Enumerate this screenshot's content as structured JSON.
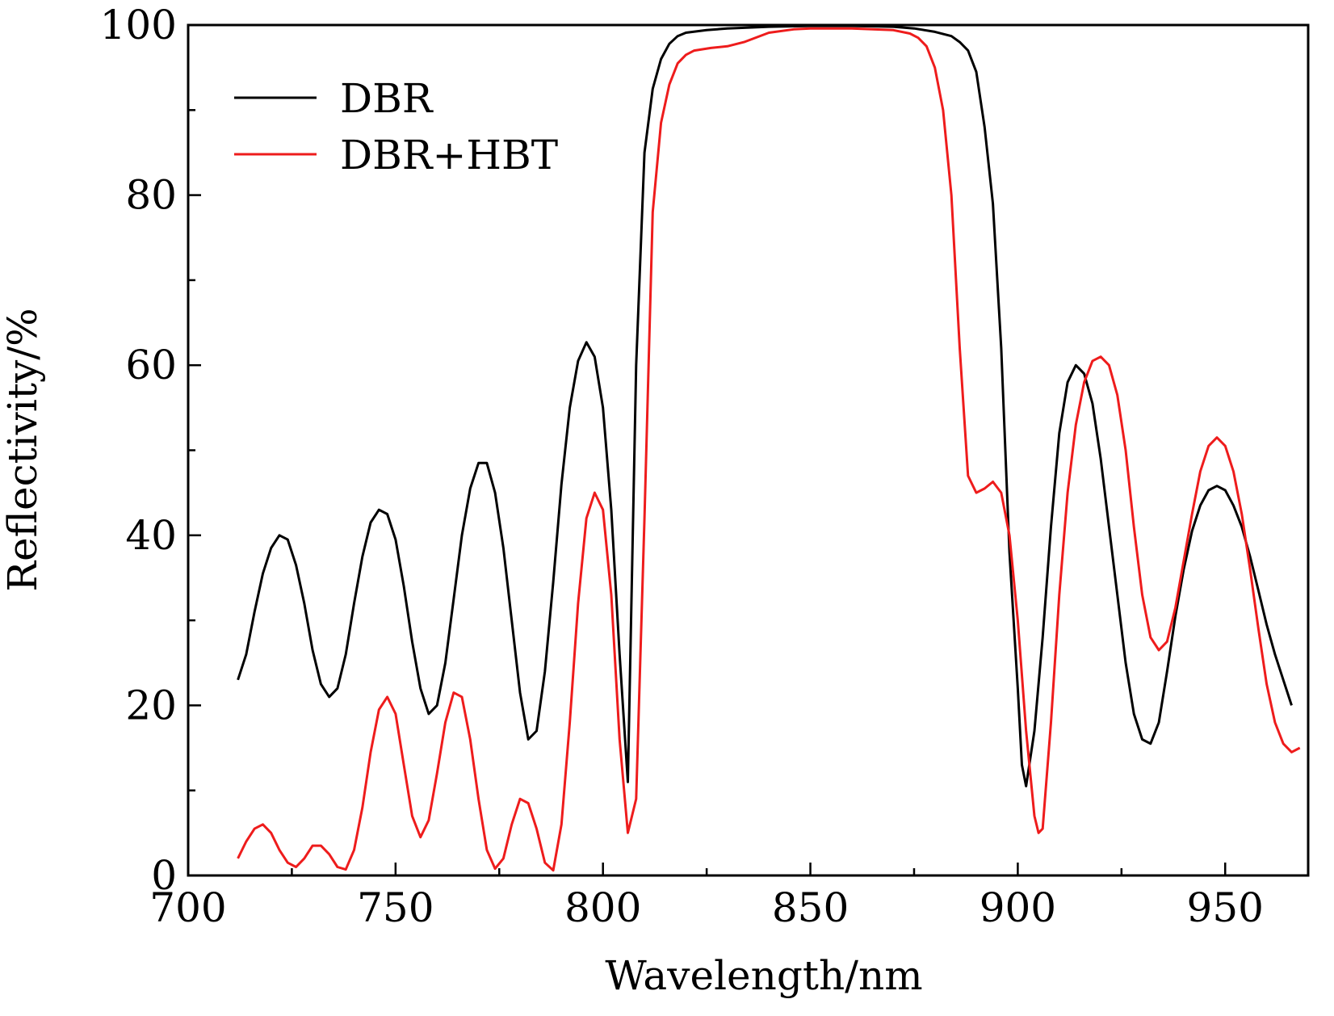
{
  "chart_data": {
    "type": "line",
    "xlabel": "Wavelength/nm",
    "ylabel": "Reflectivity/%",
    "xlim": [
      700,
      970
    ],
    "ylim": [
      0,
      100
    ],
    "x_ticks": [
      700,
      750,
      800,
      850,
      900,
      950
    ],
    "y_ticks": [
      0,
      20,
      40,
      60,
      80,
      100
    ],
    "x_minor_ticks": [
      725,
      775,
      825,
      875,
      925
    ],
    "y_minor_ticks": [
      10,
      30,
      50,
      70,
      90
    ],
    "grid": false,
    "legend_position": "top-left",
    "series": [
      {
        "name": "DBR",
        "color": "#000000",
        "points": [
          [
            712,
            23
          ],
          [
            714,
            26
          ],
          [
            716,
            31
          ],
          [
            718,
            35.5
          ],
          [
            720,
            38.5
          ],
          [
            722,
            40
          ],
          [
            724,
            39.5
          ],
          [
            726,
            36.5
          ],
          [
            728,
            32
          ],
          [
            730,
            26.5
          ],
          [
            732,
            22.5
          ],
          [
            734,
            21
          ],
          [
            736,
            22
          ],
          [
            738,
            26
          ],
          [
            740,
            32
          ],
          [
            742,
            37.5
          ],
          [
            744,
            41.5
          ],
          [
            746,
            43
          ],
          [
            748,
            42.5
          ],
          [
            750,
            39.5
          ],
          [
            752,
            34
          ],
          [
            754,
            27.5
          ],
          [
            756,
            22
          ],
          [
            758,
            19
          ],
          [
            760,
            20
          ],
          [
            762,
            25
          ],
          [
            764,
            32.5
          ],
          [
            766,
            40
          ],
          [
            768,
            45.5
          ],
          [
            770,
            48.5
          ],
          [
            772,
            48.5
          ],
          [
            774,
            45
          ],
          [
            776,
            38.5
          ],
          [
            778,
            30
          ],
          [
            780,
            21.5
          ],
          [
            782,
            16
          ],
          [
            784,
            17
          ],
          [
            786,
            24
          ],
          [
            788,
            34.5
          ],
          [
            790,
            46
          ],
          [
            792,
            55
          ],
          [
            794,
            60.5
          ],
          [
            796,
            62.7
          ],
          [
            798,
            61
          ],
          [
            800,
            55
          ],
          [
            802,
            43
          ],
          [
            804,
            26
          ],
          [
            806,
            11
          ],
          [
            808,
            60
          ],
          [
            810,
            85
          ],
          [
            812,
            92.5
          ],
          [
            814,
            96
          ],
          [
            816,
            97.8
          ],
          [
            818,
            98.7
          ],
          [
            820,
            99.1
          ],
          [
            825,
            99.4
          ],
          [
            830,
            99.6
          ],
          [
            840,
            99.8
          ],
          [
            850,
            99.9
          ],
          [
            860,
            99.9
          ],
          [
            870,
            99.8
          ],
          [
            875,
            99.6
          ],
          [
            880,
            99.2
          ],
          [
            884,
            98.7
          ],
          [
            886,
            98
          ],
          [
            888,
            97
          ],
          [
            890,
            94.5
          ],
          [
            892,
            88
          ],
          [
            894,
            79
          ],
          [
            896,
            62
          ],
          [
            898,
            38
          ],
          [
            900,
            22
          ],
          [
            901,
            13
          ],
          [
            902,
            10.5
          ],
          [
            904,
            17
          ],
          [
            906,
            28
          ],
          [
            908,
            41
          ],
          [
            910,
            52
          ],
          [
            912,
            58
          ],
          [
            914,
            60
          ],
          [
            916,
            59
          ],
          [
            918,
            55.5
          ],
          [
            920,
            49
          ],
          [
            922,
            41
          ],
          [
            924,
            33
          ],
          [
            926,
            25
          ],
          [
            928,
            19
          ],
          [
            930,
            16
          ],
          [
            932,
            15.5
          ],
          [
            934,
            18
          ],
          [
            936,
            24
          ],
          [
            938,
            30.5
          ],
          [
            940,
            36
          ],
          [
            942,
            40.5
          ],
          [
            944,
            43.5
          ],
          [
            946,
            45.3
          ],
          [
            948,
            45.8
          ],
          [
            950,
            45.3
          ],
          [
            952,
            43.5
          ],
          [
            954,
            41
          ],
          [
            956,
            37.5
          ],
          [
            958,
            33.5
          ],
          [
            960,
            29.5
          ],
          [
            962,
            26
          ],
          [
            964,
            23
          ],
          [
            966,
            20
          ]
        ]
      },
      {
        "name": "DBR+HBT",
        "color": "#ee1c1c",
        "points": [
          [
            712,
            2
          ],
          [
            714,
            4
          ],
          [
            716,
            5.5
          ],
          [
            718,
            6
          ],
          [
            720,
            5
          ],
          [
            722,
            3
          ],
          [
            724,
            1.5
          ],
          [
            726,
            1
          ],
          [
            728,
            2
          ],
          [
            730,
            3.5
          ],
          [
            732,
            3.5
          ],
          [
            734,
            2.5
          ],
          [
            736,
            1
          ],
          [
            738,
            0.7
          ],
          [
            740,
            3
          ],
          [
            742,
            8
          ],
          [
            744,
            14.5
          ],
          [
            746,
            19.5
          ],
          [
            748,
            21
          ],
          [
            750,
            19
          ],
          [
            752,
            13
          ],
          [
            754,
            7
          ],
          [
            756,
            4.5
          ],
          [
            758,
            6.5
          ],
          [
            760,
            12
          ],
          [
            762,
            18
          ],
          [
            764,
            21.5
          ],
          [
            766,
            21
          ],
          [
            768,
            16
          ],
          [
            770,
            9
          ],
          [
            772,
            3
          ],
          [
            774,
            0.8
          ],
          [
            776,
            2
          ],
          [
            778,
            6
          ],
          [
            780,
            9
          ],
          [
            782,
            8.5
          ],
          [
            784,
            5.5
          ],
          [
            786,
            1.5
          ],
          [
            788,
            0.6
          ],
          [
            790,
            6
          ],
          [
            792,
            18
          ],
          [
            794,
            32
          ],
          [
            796,
            42
          ],
          [
            798,
            45
          ],
          [
            800,
            43
          ],
          [
            802,
            33
          ],
          [
            804,
            16
          ],
          [
            806,
            5
          ],
          [
            808,
            9
          ],
          [
            810,
            42
          ],
          [
            812,
            78
          ],
          [
            814,
            88.5
          ],
          [
            816,
            93
          ],
          [
            818,
            95.5
          ],
          [
            820,
            96.5
          ],
          [
            822,
            97
          ],
          [
            826,
            97.3
          ],
          [
            830,
            97.5
          ],
          [
            834,
            98
          ],
          [
            840,
            99.1
          ],
          [
            846,
            99.5
          ],
          [
            850,
            99.6
          ],
          [
            860,
            99.6
          ],
          [
            870,
            99.4
          ],
          [
            874,
            99
          ],
          [
            876,
            98.5
          ],
          [
            878,
            97.5
          ],
          [
            880,
            95
          ],
          [
            882,
            90
          ],
          [
            884,
            80
          ],
          [
            886,
            62
          ],
          [
            888,
            47
          ],
          [
            890,
            45
          ],
          [
            892,
            45.5
          ],
          [
            894,
            46.3
          ],
          [
            896,
            45
          ],
          [
            898,
            40
          ],
          [
            900,
            30
          ],
          [
            902,
            17
          ],
          [
            904,
            7
          ],
          [
            905,
            5
          ],
          [
            906,
            5.5
          ],
          [
            908,
            18
          ],
          [
            910,
            33
          ],
          [
            912,
            45
          ],
          [
            914,
            53
          ],
          [
            916,
            58
          ],
          [
            918,
            60.5
          ],
          [
            920,
            61
          ],
          [
            922,
            60
          ],
          [
            924,
            56.5
          ],
          [
            926,
            50
          ],
          [
            928,
            41
          ],
          [
            930,
            33
          ],
          [
            932,
            28
          ],
          [
            934,
            26.5
          ],
          [
            936,
            27.5
          ],
          [
            938,
            31.5
          ],
          [
            940,
            37
          ],
          [
            942,
            42.5
          ],
          [
            944,
            47.5
          ],
          [
            946,
            50.5
          ],
          [
            948,
            51.5
          ],
          [
            950,
            50.5
          ],
          [
            952,
            47.5
          ],
          [
            954,
            42.5
          ],
          [
            956,
            36
          ],
          [
            958,
            29
          ],
          [
            960,
            22.5
          ],
          [
            962,
            18
          ],
          [
            964,
            15.5
          ],
          [
            966,
            14.5
          ],
          [
            968,
            15
          ]
        ]
      }
    ]
  }
}
